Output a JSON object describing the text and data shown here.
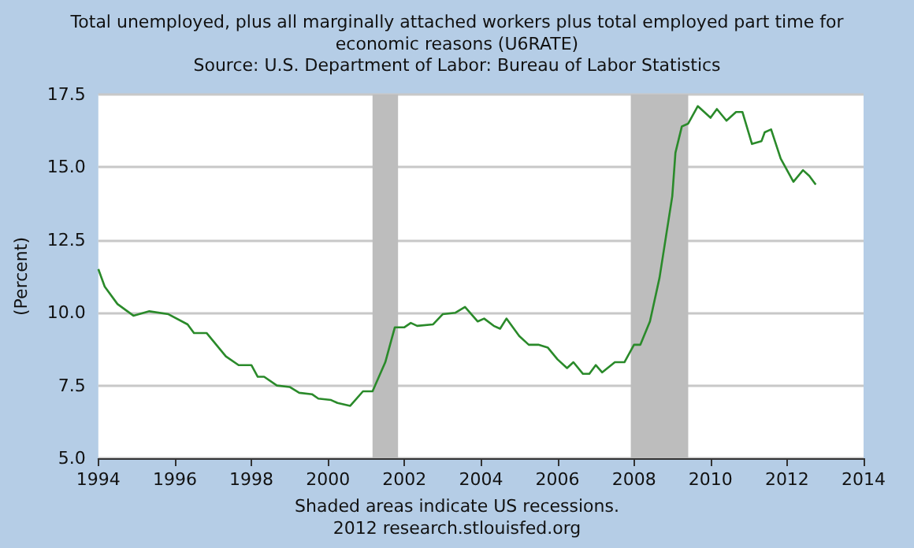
{
  "chart_data": {
    "type": "line",
    "title": "Total unemployed, plus all marginally attached workers plus total employed part time for\neconomic reasons (U6RATE)",
    "subtitle": "Source: U.S. Department of Labor: Bureau of Labor Statistics",
    "ylabel": "(Percent)",
    "annotations": [
      "Shaded areas indicate US recessions.",
      "2012 research.stlouisfed.org"
    ],
    "x": [
      "1994-01",
      "1994-03",
      "1994-07",
      "1994-12",
      "1995-05",
      "1995-11",
      "1996-05",
      "1996-07",
      "1996-11",
      "1997-02",
      "1997-05",
      "1997-09",
      "1998-01",
      "1998-03",
      "1998-05",
      "1998-09",
      "1999-01",
      "1999-04",
      "1999-08",
      "1999-10",
      "2000-02",
      "2000-04",
      "2000-08",
      "2000-12",
      "2001-03",
      "2001-05",
      "2001-07",
      "2001-09",
      "2001-10",
      "2002-01",
      "2002-03",
      "2002-05",
      "2002-10",
      "2003-01",
      "2003-05",
      "2003-08",
      "2003-12",
      "2004-02",
      "2004-05",
      "2004-07",
      "2004-09",
      "2005-01",
      "2005-04",
      "2005-07",
      "2005-10",
      "2006-01",
      "2006-04",
      "2006-06",
      "2006-09",
      "2006-11",
      "2007-01",
      "2007-03",
      "2007-07",
      "2007-10",
      "2008-01",
      "2008-03",
      "2008-06",
      "2008-09",
      "2008-11",
      "2009-01",
      "2009-02",
      "2009-04",
      "2009-06",
      "2009-09",
      "2010-01",
      "2010-03",
      "2010-06",
      "2010-09",
      "2010-11",
      "2011-02",
      "2011-05",
      "2011-06",
      "2011-08",
      "2011-11",
      "2012-03",
      "2012-06",
      "2012-08",
      "2012-10"
    ],
    "series": [
      {
        "color": "#2a8a2a",
        "values": [
          11.5,
          10.9,
          10.3,
          9.9,
          10.05,
          9.95,
          9.6,
          9.3,
          9.3,
          8.9,
          8.5,
          8.2,
          8.2,
          7.8,
          7.8,
          7.5,
          7.45,
          7.25,
          7.2,
          7.05,
          7.0,
          6.9,
          6.8,
          7.3,
          7.3,
          7.8,
          8.3,
          9.1,
          9.5,
          9.5,
          9.65,
          9.55,
          9.6,
          9.95,
          10.0,
          10.2,
          9.7,
          9.8,
          9.55,
          9.45,
          9.8,
          9.2,
          8.9,
          8.9,
          8.8,
          8.4,
          8.1,
          8.3,
          7.9,
          7.9,
          8.2,
          7.95,
          8.3,
          8.3,
          8.9,
          8.9,
          9.7,
          11.2,
          12.6,
          14.0,
          15.5,
          16.4,
          16.5,
          17.1,
          16.7,
          17.0,
          16.6,
          16.9,
          16.9,
          15.8,
          15.9,
          16.2,
          16.3,
          15.3,
          14.5,
          14.9,
          14.7,
          14.4
        ]
      }
    ],
    "xlim": [
      "1994-01",
      "2014-01"
    ],
    "xticks": [
      "1994",
      "1996",
      "1998",
      "2000",
      "2002",
      "2004",
      "2006",
      "2008",
      "2010",
      "2012",
      "2014"
    ],
    "ylim": [
      5.0,
      17.5
    ],
    "yticks": [
      {
        "value": 5,
        "label": "5.0"
      },
      {
        "value": 7.5,
        "label": "7.5"
      },
      {
        "value": 10,
        "label": "10.0"
      },
      {
        "value": 12.5,
        "label": "12.5"
      },
      {
        "value": 15,
        "label": "15.0"
      },
      {
        "value": 17.5,
        "label": "17.5"
      }
    ],
    "grid": "y",
    "marker": "none",
    "line_style": "solid",
    "bands": [
      {
        "axis": "x",
        "from": "2001-03",
        "to": "2001-11",
        "color": "#bdbdbd"
      },
      {
        "axis": "x",
        "from": "2007-12",
        "to": "2009-06",
        "color": "#bdbdbd"
      }
    ]
  }
}
